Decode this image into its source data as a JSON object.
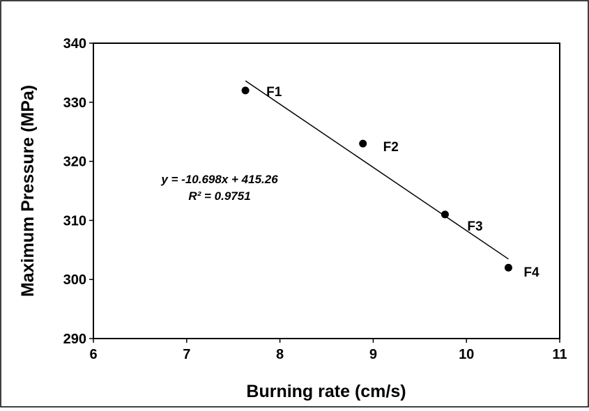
{
  "chart_data": {
    "type": "scatter",
    "xlabel": "Burning rate (cm/s)",
    "ylabel": "Maximum Pressure (MPa)",
    "xlim": [
      6,
      11
    ],
    "ylim": [
      290,
      340
    ],
    "xticks": [
      "6",
      "7",
      "8",
      "9",
      "10",
      "11"
    ],
    "yticks": [
      "290",
      "300",
      "310",
      "320",
      "330",
      "340"
    ],
    "grid": false,
    "legend": "none",
    "series": [
      {
        "points": [
          {
            "label": "F1",
            "x": 7.63,
            "y": 332
          },
          {
            "label": "F2",
            "x": 8.89,
            "y": 323
          },
          {
            "label": "F3",
            "x": 9.77,
            "y": 311
          },
          {
            "label": "F4",
            "x": 10.45,
            "y": 302
          }
        ]
      }
    ],
    "trendline": {
      "slope": -10.698,
      "intercept": 415.26,
      "x_range": [
        7.63,
        10.45
      ],
      "equation": "y = -10.698x + 415.26",
      "r_squared": "R² = 0.9751"
    },
    "colors": {
      "marker": "#000000",
      "line": "#000000",
      "frame": "#000000"
    }
  }
}
